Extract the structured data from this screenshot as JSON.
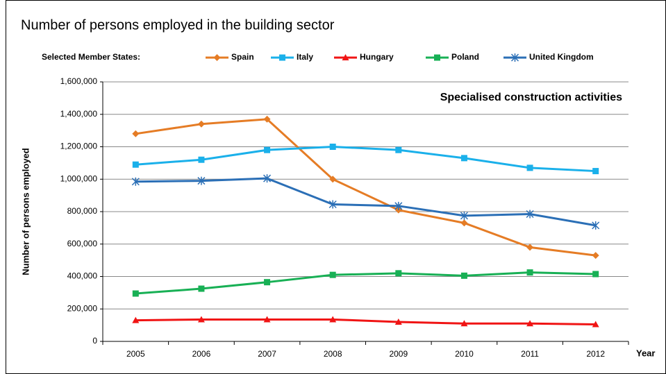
{
  "chart_data": {
    "type": "line",
    "title": "Number of persons employed  in the building sector",
    "legend_title": "Selected Member States:",
    "annotation": "Specialised construction activities",
    "y_label": "Number of persons employed",
    "x_label": "Year",
    "categories": [
      "2005",
      "2006",
      "2007",
      "2008",
      "2009",
      "2010",
      "2011",
      "2012"
    ],
    "series": [
      {
        "name": "Spain",
        "color": "#e57c25",
        "marker": "diamond",
        "values": [
          1280000,
          1340000,
          1370000,
          1000000,
          810000,
          730000,
          580000,
          530000
        ]
      },
      {
        "name": "Italy",
        "color": "#1ab0ea",
        "marker": "square",
        "values": [
          1090000,
          1120000,
          1180000,
          1200000,
          1180000,
          1130000,
          1070000,
          1050000
        ]
      },
      {
        "name": "Hungary",
        "color": "#f01414",
        "marker": "triangle",
        "values": [
          130000,
          135000,
          135000,
          135000,
          120000,
          110000,
          110000,
          105000
        ]
      },
      {
        "name": "Poland",
        "color": "#18b055",
        "marker": "square",
        "values": [
          295000,
          325000,
          365000,
          410000,
          420000,
          405000,
          425000,
          415000
        ]
      },
      {
        "name": "United Kingdom",
        "color": "#2b6fb6",
        "marker": "asterisk",
        "values": [
          985000,
          990000,
          1005000,
          845000,
          835000,
          775000,
          785000,
          715000
        ]
      }
    ],
    "ylim": [
      0,
      1600000
    ],
    "yticks": [
      0,
      {
        "value": 200000,
        "label": "200,000"
      },
      {
        "value": 400000,
        "label": "400,000"
      },
      {
        "value": 600000,
        "label": "600,000"
      },
      {
        "value": 800000,
        "label": "800,000"
      },
      {
        "value": 1000000,
        "label": "1,000,000"
      },
      {
        "value": 1200000,
        "label": "1,200,000"
      },
      {
        "value": 1400000,
        "label": "1,400,000"
      },
      {
        "value": 1600000,
        "label": "1,600,000"
      }
    ],
    "grid": true
  }
}
